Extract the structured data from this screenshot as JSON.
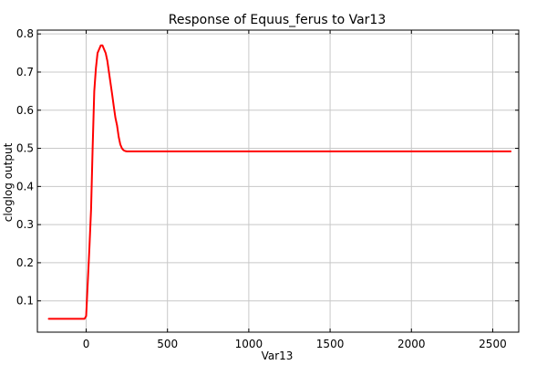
{
  "chart_data": {
    "type": "line",
    "title": "Response of Equus_ferus to Var13",
    "xlabel": "Var13",
    "ylabel": "cloglog output",
    "xlim": [
      -300,
      2660
    ],
    "ylim": [
      0.018,
      0.81
    ],
    "xticks": [
      0,
      500,
      1000,
      1500,
      2000,
      2500
    ],
    "yticks": [
      0.1,
      0.2,
      0.3,
      0.4,
      0.5,
      0.6,
      0.7,
      0.8
    ],
    "grid": true,
    "legend": "none",
    "series": [
      {
        "color": "#ff0000",
        "x": [
          -230,
          -10,
          0,
          10,
          20,
          30,
          40,
          50,
          60,
          70,
          80,
          90,
          100,
          110,
          120,
          130,
          140,
          150,
          160,
          170,
          180,
          190,
          200,
          210,
          220,
          230,
          240,
          250,
          270,
          2610
        ],
        "y": [
          0.053,
          0.053,
          0.06,
          0.15,
          0.24,
          0.34,
          0.5,
          0.65,
          0.71,
          0.75,
          0.76,
          0.77,
          0.77,
          0.76,
          0.75,
          0.73,
          0.7,
          0.67,
          0.64,
          0.61,
          0.58,
          0.56,
          0.53,
          0.51,
          0.5,
          0.495,
          0.493,
          0.492,
          0.492,
          0.492
        ]
      }
    ]
  }
}
